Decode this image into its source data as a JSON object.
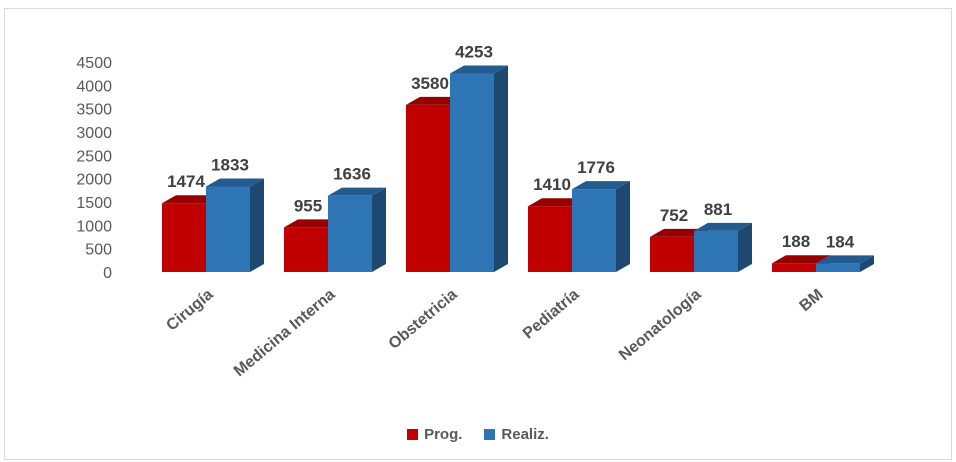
{
  "chart_data": {
    "type": "bar",
    "title": "",
    "xlabel": "",
    "ylabel": "",
    "categories": [
      "Cirugía",
      "Medicina Interna",
      "Obstetricia",
      "Pediatría",
      "Neonatología",
      "BM"
    ],
    "series": [
      {
        "name": "Prog.",
        "values": [
          1474,
          955,
          3580,
          1410,
          752,
          188
        ],
        "color": "#c00000"
      },
      {
        "name": "Realiz.",
        "values": [
          1833,
          1636,
          4253,
          1776,
          881,
          184
        ],
        "color": "#2e75b6"
      }
    ],
    "ylim": [
      0,
      4500
    ],
    "yticks": [
      "0",
      "500",
      "1000",
      "1500",
      "2000",
      "2500",
      "3000",
      "3500",
      "4000",
      "4500"
    ],
    "legend": "bottom",
    "grid": false,
    "style": "3d-clustered-column"
  }
}
